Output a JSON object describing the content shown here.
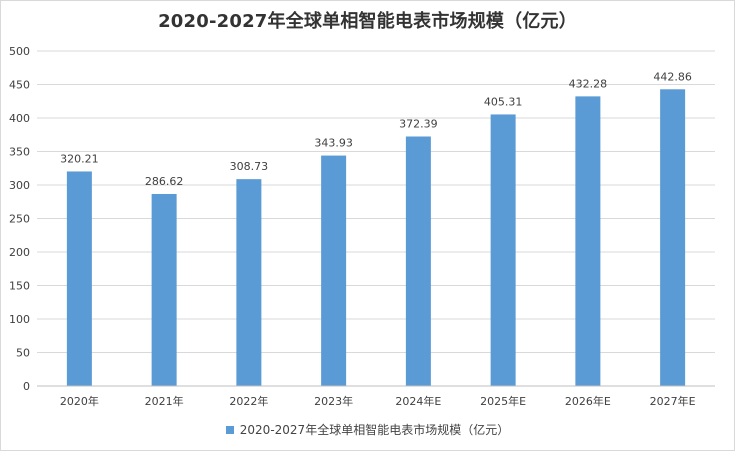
{
  "chart_data": {
    "type": "bar",
    "title": "2020-2027年全球单相智能电表市场规模（亿元）",
    "categories": [
      "2020年",
      "2021年",
      "2022年",
      "2023年",
      "2024年E",
      "2025年E",
      "2026年E",
      "2027年E"
    ],
    "series": [
      {
        "name": "2020-2027年全球单相智能电表市场规模（亿元）",
        "values": [
          320.21,
          286.62,
          308.73,
          343.93,
          372.39,
          405.31,
          432.28,
          442.86
        ],
        "labels": [
          "320.21",
          "286.62",
          "308.73",
          "343.93",
          "372.39",
          "405.31",
          "432.28",
          "442.86"
        ]
      }
    ],
    "ylim": [
      0,
      500
    ],
    "yticks": [
      0,
      50,
      100,
      150,
      200,
      250,
      300,
      350,
      400,
      450,
      500
    ],
    "grid": true,
    "legend_position": "bottom",
    "colors": {
      "bar": "#5b9bd5",
      "grid": "#d9d9d9",
      "text": "#404040"
    }
  }
}
